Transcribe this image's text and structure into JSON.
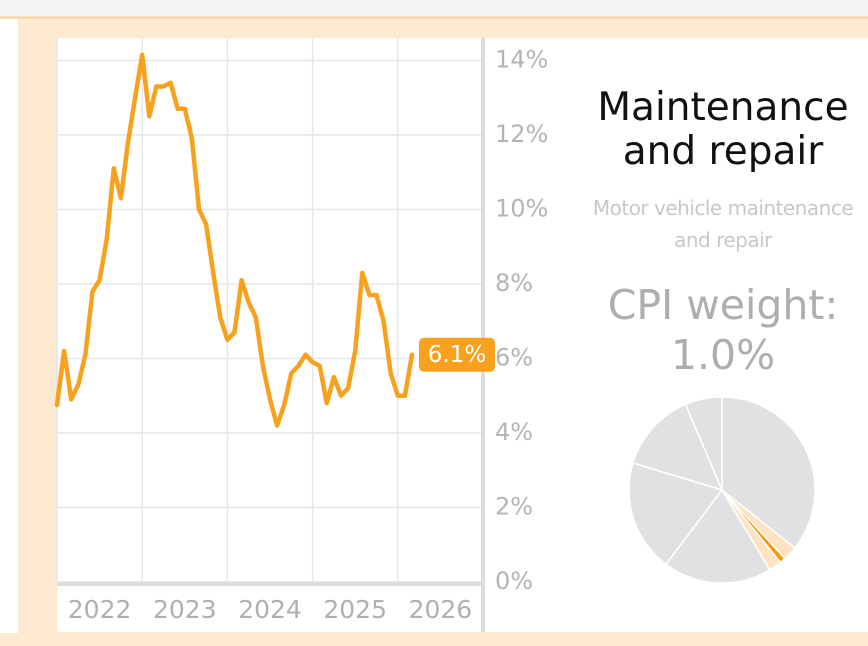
{
  "panel": {
    "title": "Maintenance and repair",
    "subtitle": "Motor vehicle maintenance and repair",
    "weight_label": "CPI weight:",
    "weight": "1.0%"
  },
  "chart_data": [
    {
      "type": "line",
      "x": [
        2022,
        2022.0833,
        2022.1667,
        2022.25,
        2022.3333,
        2022.4167,
        2022.5,
        2022.5833,
        2022.6667,
        2022.75,
        2022.8333,
        2022.9167,
        2023,
        2023.0833,
        2023.1667,
        2023.25,
        2023.3333,
        2023.4167,
        2023.5,
        2023.5833,
        2023.6667,
        2023.75,
        2023.8333,
        2023.9167,
        2024,
        2024.0833,
        2024.1667,
        2024.25,
        2024.3333,
        2024.4167,
        2024.5,
        2024.5833,
        2024.6667,
        2024.75,
        2024.8333,
        2024.9167,
        2025,
        2025.0833,
        2025.1667,
        2025.25,
        2025.3333,
        2025.4167,
        2025.5,
        2025.5833,
        2025.6667,
        2025.75,
        2025.8333,
        2025.9167,
        2026,
        2026.0833,
        2026.1667
      ],
      "series": [
        {
          "color": "#f7a11c",
          "values": [
            4.75,
            6.2,
            4.9,
            5.3,
            6.1,
            7.8,
            8.1,
            9.2,
            11.1,
            10.3,
            11.8,
            13.0,
            14.15,
            12.5,
            13.3,
            13.3,
            13.4,
            12.7,
            12.7,
            11.9,
            10.0,
            9.6,
            8.3,
            7.1,
            6.5,
            6.7,
            8.1,
            7.5,
            7.1,
            5.8,
            4.9,
            4.2,
            4.75,
            5.6,
            5.8,
            6.1,
            5.9,
            5.8,
            4.8,
            5.5,
            5.0,
            5.2,
            6.2,
            8.3,
            7.7,
            7.7,
            7.0,
            5.6,
            5.0,
            5.0,
            6.1
          ],
          "value_labels": [
            null,
            null,
            null,
            null,
            null,
            null,
            null,
            null,
            null,
            null,
            null,
            null,
            null,
            null,
            null,
            null,
            null,
            null,
            null,
            null,
            null,
            null,
            null,
            null,
            null,
            null,
            null,
            null,
            null,
            null,
            null,
            null,
            null,
            null,
            null,
            null,
            null,
            null,
            null,
            null,
            null,
            null,
            null,
            null,
            null,
            null,
            null,
            null,
            null,
            null,
            "6.1%"
          ]
        }
      ],
      "xlim": [
        2022,
        2027
      ],
      "xticks": [
        2022,
        2023,
        2024,
        2025,
        2026
      ],
      "ylim": [
        0,
        14.6
      ],
      "yticks": [
        {
          "value": 0,
          "label": "0%"
        },
        {
          "value": 2,
          "label": "2%"
        },
        {
          "value": 4,
          "label": "4%"
        },
        {
          "value": 6,
          "label": "6%"
        },
        {
          "value": 8,
          "label": "8%"
        },
        {
          "value": 10,
          "label": "10%"
        },
        {
          "value": 12,
          "label": "12%"
        },
        {
          "value": 14,
          "label": "14%"
        }
      ],
      "grid": true
    },
    {
      "type": "pie",
      "values": [
        35.7,
        2.5,
        1.0,
        2.2,
        18.9,
        19.4,
        13.9,
        6.4
      ],
      "colors": [
        "#e1e1e3",
        "#fde3c2",
        "#f5980c",
        "#fde3c2",
        "#e1e1e3",
        "#e1e1e3",
        "#e1e1e3",
        "#e1e1e3"
      ]
    }
  ]
}
